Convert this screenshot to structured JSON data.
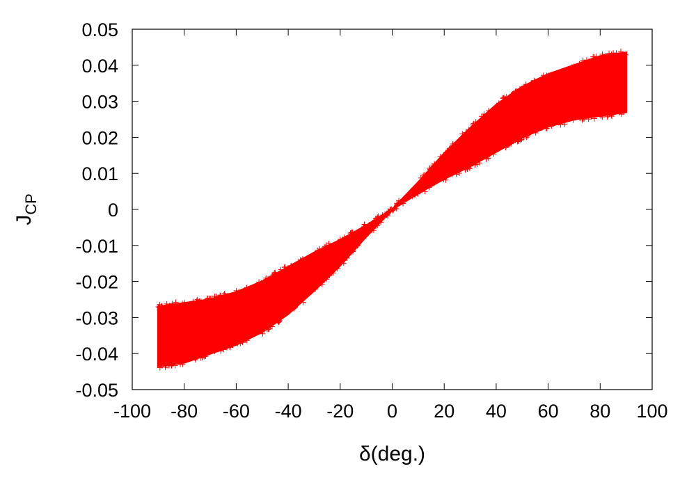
{
  "chart_data": {
    "type": "scatter",
    "marker": "+",
    "xlabel": "δ(deg.)",
    "ylabel": {
      "base": "J",
      "subscript": "CP"
    },
    "xlim": [
      -100,
      100
    ],
    "ylim": [
      -0.05,
      0.05
    ],
    "xticks": [
      -100,
      -80,
      -60,
      -40,
      -20,
      0,
      20,
      40,
      60,
      80,
      100
    ],
    "yticks": [
      -0.05,
      -0.04,
      -0.03,
      -0.02,
      -0.01,
      0,
      0.01,
      0.02,
      0.03,
      0.04,
      0.05
    ],
    "xtick_labels": [
      "-100",
      "-80",
      "-60",
      "-40",
      "-20",
      "0",
      "20",
      "40",
      "60",
      "80",
      "100"
    ],
    "ytick_labels": [
      "-0.05",
      "-0.04",
      "-0.03",
      "-0.02",
      "-0.01",
      "0",
      "0.01",
      "0.02",
      "0.03",
      "0.04",
      "0.05"
    ],
    "grid": false,
    "series": [
      {
        "color": "#ff0000",
        "x_range": [
          -90,
          90
        ],
        "upper_envelope": [
          {
            "x": -90,
            "y": -0.027
          },
          {
            "x": -80,
            "y": -0.026
          },
          {
            "x": -70,
            "y": -0.025
          },
          {
            "x": -60,
            "y": -0.023
          },
          {
            "x": -50,
            "y": -0.02
          },
          {
            "x": -40,
            "y": -0.016
          },
          {
            "x": -30,
            "y": -0.012
          },
          {
            "x": -20,
            "y": -0.0085
          },
          {
            "x": -10,
            "y": -0.0045
          },
          {
            "x": 0,
            "y": 0
          },
          {
            "x": 10,
            "y": 0.0075
          },
          {
            "x": 20,
            "y": 0.0155
          },
          {
            "x": 30,
            "y": 0.0225
          },
          {
            "x": 40,
            "y": 0.029
          },
          {
            "x": 50,
            "y": 0.034
          },
          {
            "x": 60,
            "y": 0.0375
          },
          {
            "x": 70,
            "y": 0.04
          },
          {
            "x": 80,
            "y": 0.0425
          },
          {
            "x": 90,
            "y": 0.0435
          }
        ],
        "lower_envelope": [
          {
            "x": -90,
            "y": -0.0435
          },
          {
            "x": -80,
            "y": -0.0425
          },
          {
            "x": -70,
            "y": -0.04
          },
          {
            "x": -60,
            "y": -0.0375
          },
          {
            "x": -50,
            "y": -0.034
          },
          {
            "x": -40,
            "y": -0.029
          },
          {
            "x": -30,
            "y": -0.0225
          },
          {
            "x": -20,
            "y": -0.0155
          },
          {
            "x": -10,
            "y": -0.0075
          },
          {
            "x": 0,
            "y": 0
          },
          {
            "x": 10,
            "y": 0.0045
          },
          {
            "x": 20,
            "y": 0.0085
          },
          {
            "x": 30,
            "y": 0.012
          },
          {
            "x": 40,
            "y": 0.016
          },
          {
            "x": 50,
            "y": 0.02
          },
          {
            "x": 60,
            "y": 0.023
          },
          {
            "x": 70,
            "y": 0.025
          },
          {
            "x": 80,
            "y": 0.026
          },
          {
            "x": 90,
            "y": 0.027
          }
        ]
      }
    ]
  }
}
